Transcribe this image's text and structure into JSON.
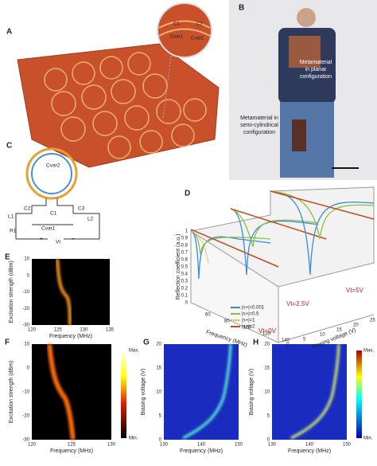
{
  "panels": {
    "A": {
      "label": "A",
      "inset": [
        "C1",
        "C2",
        "Cvar1",
        "Cvar2"
      ]
    },
    "B": {
      "label": "B",
      "planar": [
        "Metamaterial",
        "in planar",
        "configuration"
      ],
      "cyl": [
        "Metamaterial in",
        "semi-cylindrical",
        "configuration"
      ]
    },
    "C": {
      "label": "C",
      "parts": [
        "Cvar2",
        "C2",
        "C3",
        "C1",
        "L1",
        "L2",
        "Cvar1",
        "R1",
        "Vt",
        "+",
        "−"
      ]
    },
    "D": {
      "label": "D",
      "ylabel": "Reflection coefficient (a.u.)",
      "yticks": [
        1,
        0.9,
        0.8,
        0.7,
        0.6,
        0.5,
        0.4,
        0.3,
        0.2,
        0.1,
        0
      ],
      "xlabel": "Frequency (MHz)",
      "xticks": [
        60,
        80,
        100,
        120,
        140
      ],
      "zlabel": "Biasing voltage (V)",
      "zticks": [
        0,
        5,
        10,
        15,
        20,
        25
      ],
      "legend": [
        "|s+|=0.001",
        "|s+|=0.5",
        "|s+|=1",
        "|s+|=2"
      ],
      "notes": [
        "Vt=0V",
        "Vt=2.5V",
        "Vt=5V"
      ]
    },
    "E": {
      "label": "E",
      "ylabel": "Excitation strength (dBm)",
      "yticks": [
        10,
        0,
        -10,
        -20,
        -30
      ],
      "xticks": [
        120,
        125,
        130,
        135
      ],
      "xlabel": "Frequency (MHz)"
    },
    "F": {
      "label": "F",
      "ylabel": "Excitation strength (dBm)",
      "yticks": [
        10,
        0,
        -10,
        -20,
        -30
      ],
      "xticks": [
        120,
        125,
        130
      ],
      "xlabel": "Frequency (MHz)",
      "cbar": [
        "Max.",
        "Min."
      ]
    },
    "G": {
      "label": "G",
      "ylabel": "Biasing voltage (V)",
      "yticks": [
        20,
        15,
        10,
        5,
        0
      ],
      "xticks": [
        130,
        140,
        150
      ],
      "xlabel": "Frequency (MHz)"
    },
    "H": {
      "label": "H",
      "ylabel": "Biasing voltage (V)",
      "yticks": [
        20,
        15,
        10,
        5,
        0
      ],
      "xticks": [
        130,
        140,
        150
      ],
      "xlabel": "Frequency (MHz)",
      "cbar": [
        "Max.",
        "Min."
      ]
    }
  }
}
